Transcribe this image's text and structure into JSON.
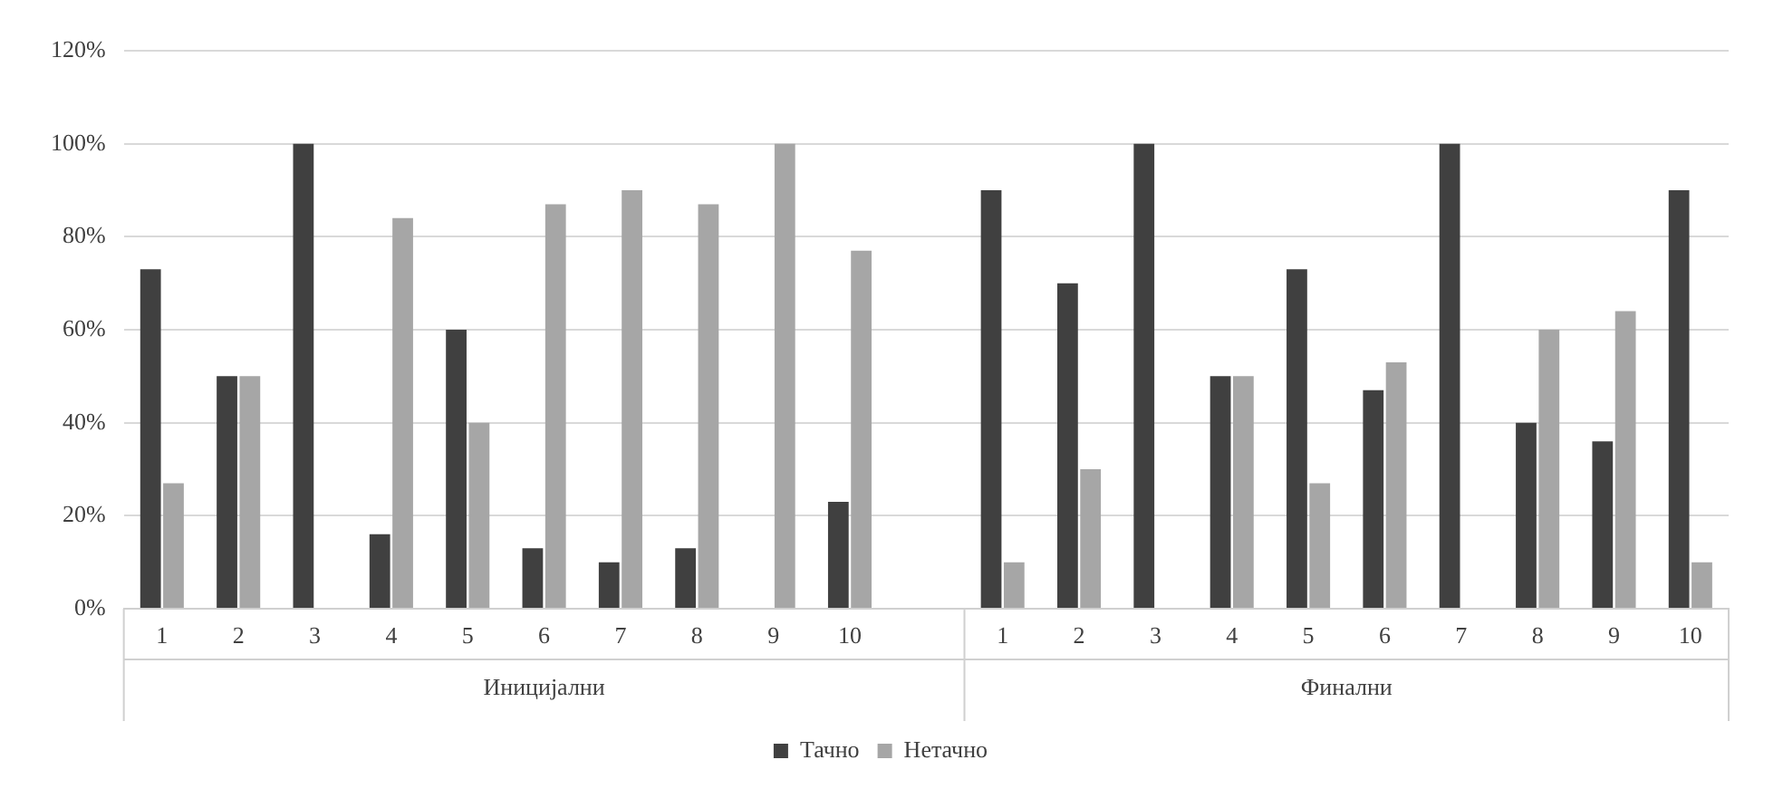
{
  "chart_data": {
    "type": "bar",
    "categories": [
      "1",
      "2",
      "3",
      "4",
      "5",
      "6",
      "7",
      "8",
      "9",
      "10",
      null,
      "1",
      "2",
      "3",
      "4",
      "5",
      "6",
      "7",
      "8",
      "9",
      "10"
    ],
    "series": [
      {
        "name": "Тачно",
        "color": "#404040",
        "values": [
          73,
          50,
          100,
          16,
          60,
          13,
          10,
          13,
          0,
          23,
          null,
          90,
          70,
          100,
          50,
          73,
          47,
          100,
          40,
          36,
          90
        ]
      },
      {
        "name": "Нетачно",
        "color": "#a6a6a6",
        "values": [
          27,
          50,
          0,
          84,
          40,
          87,
          90,
          87,
          100,
          77,
          null,
          10,
          30,
          0,
          50,
          27,
          53,
          0,
          60,
          64,
          10
        ]
      }
    ],
    "ylim": [
      0,
      120
    ],
    "yticks": [
      {
        "value": 0,
        "label": "0%"
      },
      {
        "value": 20,
        "label": "20%"
      },
      {
        "value": 40,
        "label": "40%"
      },
      {
        "value": 60,
        "label": "60%"
      },
      {
        "value": 80,
        "label": "80%"
      },
      {
        "value": 100,
        "label": "100%"
      },
      {
        "value": 120,
        "label": "120%"
      }
    ],
    "grid": "y",
    "legend": "bottom",
    "annotations": [
      "Иницијални",
      "Финални"
    ]
  }
}
